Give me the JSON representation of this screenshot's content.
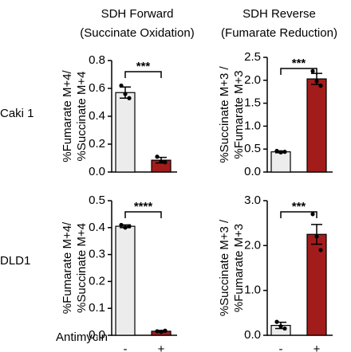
{
  "column_titles": [
    [
      "SDH Forward",
      "(Succinate Oxidation)"
    ],
    [
      "SDH Reverse",
      "(Fumarate Reduction)"
    ]
  ],
  "row_labels": [
    "Caki 1",
    "DLD1"
  ],
  "treatment_label": "Antimycin",
  "categories": [
    "-",
    "+"
  ],
  "chart_data": [
    {
      "type": "bar",
      "ylabel": [
        "%Fumarate M+4/",
        "%Succinate M+4"
      ],
      "colors": [
        "#ececec",
        "#a31c1c"
      ],
      "values": [
        0.57,
        0.085
      ],
      "errors": [
        0.04,
        0.02
      ],
      "points": [
        [
          0.62,
          0.56,
          0.53
        ],
        [
          0.11,
          0.075,
          0.07
        ]
      ],
      "significance": "***",
      "ylim": [
        0,
        0.8
      ],
      "yticks": [
        {
          "value": 0,
          "label": "0.0"
        },
        0.2,
        0.4,
        0.6,
        0.8
      ]
    },
    {
      "type": "bar",
      "ylabel": [
        "%Succinate M+3 /",
        "%Fumarate M+3"
      ],
      "colors": [
        "#ececec",
        "#a31c1c"
      ],
      "values": [
        0.44,
        2.03
      ],
      "errors": [
        0.02,
        0.12
      ],
      "points": [
        [
          0.46,
          0.43,
          0.44
        ],
        [
          2.2,
          1.98,
          1.88
        ]
      ],
      "significance": "***",
      "ylim": [
        0,
        2.5
      ],
      "yticks": [
        {
          "value": 0,
          "label": "0.0"
        },
        0.5,
        {
          "value": 1,
          "label": "1.0"
        },
        1.5,
        {
          "value": 2,
          "label": "2.0"
        },
        2.5
      ]
    },
    {
      "type": "bar",
      "ylabel": [
        "%Fumarate M+4/",
        "%Succinate M+4"
      ],
      "colors": [
        "#ececec",
        "#a31c1c"
      ],
      "values": [
        0.405,
        0.015
      ],
      "errors": [
        0.005,
        0.003
      ],
      "points": [
        [
          0.41,
          0.4,
          0.405
        ],
        [
          0.015,
          0.013,
          0.017
        ]
      ],
      "significance": "****",
      "ylim": [
        0,
        0.5
      ],
      "yticks": [
        {
          "value": 0,
          "label": "0.0"
        },
        0.1,
        0.2,
        0.3,
        0.4,
        0.5
      ]
    },
    {
      "type": "bar",
      "ylabel": [
        "%Succinate M+3 /",
        "%Fumarate M+3"
      ],
      "colors": [
        "#ececec",
        "#a31c1c"
      ],
      "values": [
        0.22,
        2.25
      ],
      "errors": [
        0.07,
        0.22
      ],
      "points": [
        [
          0.3,
          0.2,
          0.15
        ],
        [
          2.7,
          2.2,
          1.9
        ]
      ],
      "significance": "***",
      "ylim": [
        0,
        3
      ],
      "yticks": [
        {
          "value": 0,
          "label": "0.0"
        },
        {
          "value": 1,
          "label": "1.0"
        },
        {
          "value": 2,
          "label": "2.0"
        },
        {
          "value": 3,
          "label": "3.0"
        }
      ]
    }
  ]
}
